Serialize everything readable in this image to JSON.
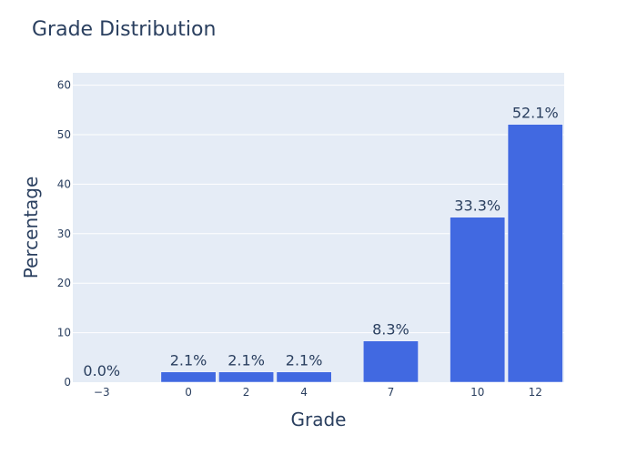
{
  "chart_data": {
    "type": "bar",
    "title": "Grade Distribution",
    "xlabel": "Grade",
    "ylabel": "Percentage",
    "x": [
      -3,
      0,
      2,
      4,
      7,
      10,
      12
    ],
    "x_tick_labels": [
      "−3",
      "0",
      "2",
      "4",
      "7",
      "10",
      "12"
    ],
    "values": [
      0.0,
      2.083,
      2.083,
      2.083,
      8.333,
      33.333,
      52.083
    ],
    "data_labels": [
      "0.0%",
      "2.1%",
      "2.1%",
      "2.1%",
      "8.3%",
      "33.3%",
      "52.1%"
    ],
    "xlim": [
      -4,
      13
    ],
    "ylim": [
      0,
      62.5
    ],
    "y_ticks": [
      0,
      10,
      20,
      30,
      40,
      50,
      60
    ],
    "grid": true,
    "legend": "none"
  },
  "colors": {
    "bar": "#4169e1",
    "plot_background": "#e5ecf6",
    "grid": "#ffffff",
    "text": "#2a3f5f"
  }
}
